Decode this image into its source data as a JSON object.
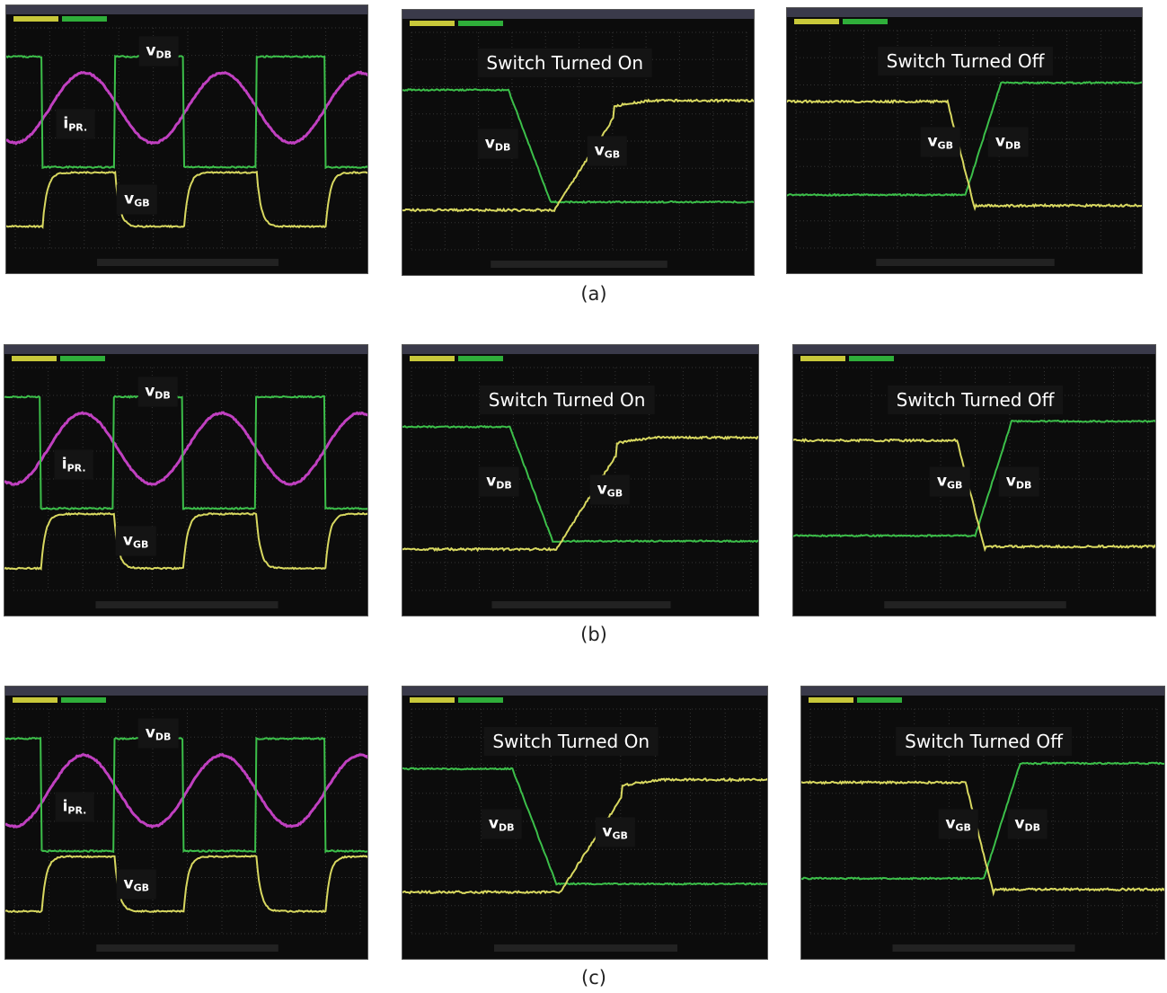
{
  "rows": [
    {
      "caption": "(a)",
      "panels": [
        {
          "labels": [
            {
              "symbol": "v",
              "subscript": "DB"
            },
            {
              "symbol": "i",
              "subscript": "PR."
            },
            {
              "symbol": "v",
              "subscript": "GB"
            }
          ]
        },
        {
          "title": "Switch Turned On",
          "labels": [
            {
              "symbol": "v",
              "subscript": "DB"
            },
            {
              "symbol": "v",
              "subscript": "GB"
            }
          ]
        },
        {
          "title": "Switch Turned Off",
          "labels": [
            {
              "symbol": "v",
              "subscript": "GB"
            },
            {
              "symbol": "v",
              "subscript": "DB"
            }
          ]
        }
      ]
    },
    {
      "caption": "(b)",
      "panels": [
        {
          "labels": [
            {
              "symbol": "v",
              "subscript": "DB"
            },
            {
              "symbol": "i",
              "subscript": "PR."
            },
            {
              "symbol": "v",
              "subscript": "GB"
            }
          ]
        },
        {
          "title": "Switch Turned On",
          "labels": [
            {
              "symbol": "v",
              "subscript": "DB"
            },
            {
              "symbol": "v",
              "subscript": "GB"
            }
          ]
        },
        {
          "title": "Switch Turned Off",
          "labels": [
            {
              "symbol": "v",
              "subscript": "GB"
            },
            {
              "symbol": "v",
              "subscript": "DB"
            }
          ]
        }
      ]
    },
    {
      "caption": "(c)",
      "panels": [
        {
          "labels": [
            {
              "symbol": "v",
              "subscript": "DB"
            },
            {
              "symbol": "i",
              "subscript": "PR."
            },
            {
              "symbol": "v",
              "subscript": "GB"
            }
          ]
        },
        {
          "title": "Switch Turned On",
          "labels": [
            {
              "symbol": "v",
              "subscript": "DB"
            },
            {
              "symbol": "v",
              "subscript": "GB"
            }
          ]
        },
        {
          "title": "Switch Turned Off",
          "labels": [
            {
              "symbol": "v",
              "subscript": "GB"
            },
            {
              "symbol": "v",
              "subscript": "DB"
            }
          ]
        }
      ]
    }
  ]
}
